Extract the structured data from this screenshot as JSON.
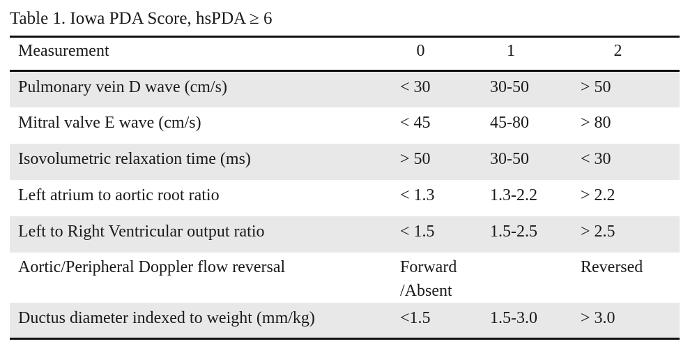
{
  "caption": "Table 1. Iowa PDA Score, hsPDA ≥ 6",
  "header": {
    "measurement": "Measurement",
    "score_0": "0",
    "score_1": "1",
    "score_2": "2"
  },
  "rows": [
    {
      "measurement": "Pulmonary vein D wave (cm/s)",
      "s0": "< 30",
      "s1": "30-50",
      "s2": "> 50"
    },
    {
      "measurement": "Mitral valve E wave (cm/s)",
      "s0": "< 45",
      "s1": "45-80",
      "s2": "> 80"
    },
    {
      "measurement": "Isovolumetric relaxation time (ms)",
      "s0": "> 50",
      "s1": "30-50",
      "s2": "< 30"
    },
    {
      "measurement": "Left atrium to aortic root ratio",
      "s0": "< 1.3",
      "s1": "1.3-2.2",
      "s2": "> 2.2"
    },
    {
      "measurement": "Left to Right Ventricular output ratio",
      "s0": "< 1.5",
      "s1": "1.5-2.5",
      "s2": "> 2.5"
    },
    {
      "measurement": "Aortic/Peripheral Doppler flow reversal",
      "s0": "Forward /Absent",
      "s1": "",
      "s2": "Reversed"
    },
    {
      "measurement": "Ductus diameter indexed to weight (mm/kg)",
      "s0": "<1.5",
      "s1": "1.5-3.0",
      "s2": "> 3.0"
    }
  ]
}
